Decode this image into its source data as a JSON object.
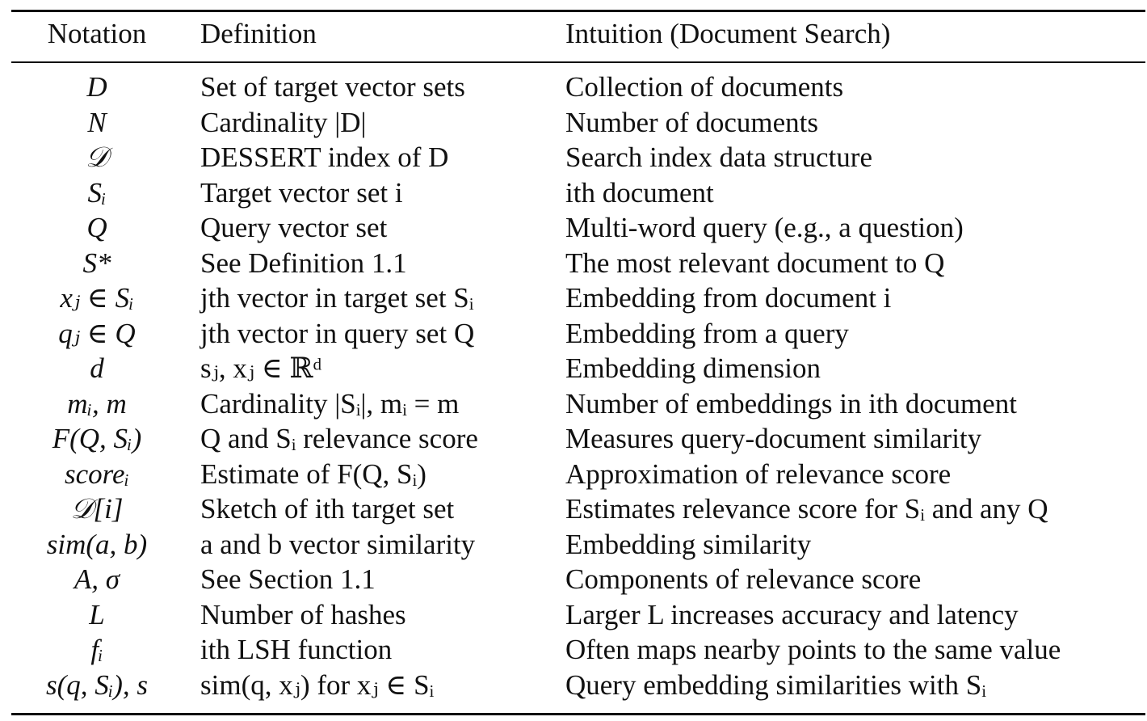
{
  "table": {
    "headers": [
      "Notation",
      "Definition",
      "Intuition (Document Search)"
    ],
    "rows": [
      {
        "notation": "D",
        "definition": "Set of target vector sets",
        "intuition": "Collection of documents"
      },
      {
        "notation": "N",
        "definition": "Cardinality |D|",
        "intuition": "Number of documents"
      },
      {
        "notation": "𝒟",
        "definition": "DESSERT index of D",
        "intuition": "Search index data structure"
      },
      {
        "notation": "Sᵢ",
        "definition": "Target vector set i",
        "intuition": "ith document"
      },
      {
        "notation": "Q",
        "definition": "Query vector set",
        "intuition": "Multi-word query (e.g., a question)"
      },
      {
        "notation": "S*",
        "definition": "See Definition 1.1",
        "intuition": "The most relevant document to Q"
      },
      {
        "notation": "xⱼ ∈ Sᵢ",
        "definition": "jth vector in target set Sᵢ",
        "intuition": "Embedding from document i"
      },
      {
        "notation": "qⱼ ∈ Q",
        "definition": "jth vector in query set Q",
        "intuition": "Embedding from a query"
      },
      {
        "notation": "d",
        "definition": "sⱼ, xⱼ ∈ ℝᵈ",
        "intuition": "Embedding dimension"
      },
      {
        "notation": "mᵢ, m",
        "definition": "Cardinality |Sᵢ|, mᵢ = m",
        "intuition": "Number of embeddings in ith document"
      },
      {
        "notation": "F(Q, Sᵢ)",
        "definition": "Q and Sᵢ relevance score",
        "intuition": "Measures query-document similarity"
      },
      {
        "notation": "scoreᵢ",
        "definition": "Estimate of F(Q, Sᵢ)",
        "intuition": "Approximation of relevance score"
      },
      {
        "notation": "𝒟[i]",
        "definition": "Sketch of ith target set",
        "intuition": "Estimates relevance score for Sᵢ and any Q"
      },
      {
        "notation": "sim(a, b)",
        "definition": "a and b vector similarity",
        "intuition": "Embedding similarity"
      },
      {
        "notation": "A, σ",
        "definition": "See Section 1.1",
        "intuition": "Components of relevance score"
      },
      {
        "notation": "L",
        "definition": "Number of hashes",
        "intuition": "Larger L increases accuracy and latency"
      },
      {
        "notation": "fᵢ",
        "definition": "ith LSH function",
        "intuition": "Often maps nearby points to the same value"
      },
      {
        "notation": "s(q, Sᵢ), s",
        "definition": "sim(q, xⱼ) for xⱼ ∈ Sᵢ",
        "intuition": "Query embedding similarities with Sᵢ"
      }
    ]
  }
}
